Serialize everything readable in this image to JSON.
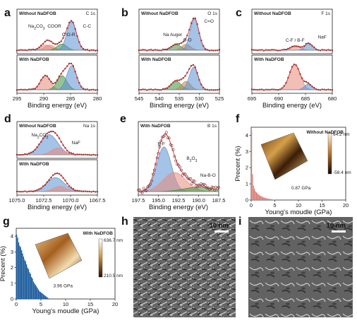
{
  "colors": {
    "frame": "#222222",
    "envelope": "#c0392b",
    "data_marker": "#7b2b3a",
    "blue_peak": "#5b8fd4",
    "red_peak": "#e58a7a",
    "green_peak": "#3f8f3f",
    "brown_peak": "#c4884d",
    "histogram_with": "#1f5e9e",
    "histogram_without": "#e0807a",
    "label_red": "#c0392b",
    "label_blue": "#1f5e9e",
    "label_green": "#2d7d2d",
    "label_brown": "#b5651d"
  },
  "labels": {
    "a": "a",
    "b": "b",
    "c": "c",
    "d": "d",
    "e": "e",
    "f": "f",
    "g": "g",
    "h": "h",
    "i": "i"
  },
  "chart_data": [
    {
      "id": "a",
      "type": "line",
      "title": "C 1s",
      "xlabel": "Binding energy (eV)",
      "ylabel": "",
      "xlim": [
        295,
        280
      ],
      "xticks": [
        "295",
        "290",
        "285",
        "280"
      ],
      "subpanels": [
        {
          "name": "Without NaDFOB",
          "peaks": [
            {
              "name": "Na2CO3",
              "center": 289.6,
              "height": 0.15,
              "width": 1.0,
              "color": "red_peak"
            },
            {
              "name": "COOR",
              "center": 288.9,
              "height": 0.15,
              "width": 0.9,
              "color": "red_peak"
            },
            {
              "name": "C-O-R",
              "center": 286.6,
              "height": 0.18,
              "width": 0.9,
              "color": "green_peak"
            },
            {
              "name": "C-C",
              "center": 284.8,
              "height": 0.82,
              "width": 0.9,
              "color": "blue_peak"
            }
          ],
          "annotations": [
            "Na2CO3",
            "COOR",
            "C-O-R",
            "C-C"
          ]
        },
        {
          "name": "With NaDFOB",
          "peaks": [
            {
              "name": "COOR",
              "center": 289.7,
              "height": 0.5,
              "width": 0.9,
              "color": "red_peak"
            },
            {
              "name": "C-O-R",
              "center": 286.6,
              "height": 0.5,
              "width": 0.9,
              "color": "green_peak"
            },
            {
              "name": "C-C",
              "center": 284.8,
              "height": 0.85,
              "width": 0.9,
              "color": "blue_peak"
            }
          ],
          "annotations": []
        }
      ]
    },
    {
      "id": "b",
      "type": "line",
      "title": "O 1s",
      "xlabel": "Binding energy (eV)",
      "ylabel": "",
      "xlim": [
        545,
        525
      ],
      "xticks": [
        "545",
        "540",
        "535",
        "530",
        "525"
      ],
      "subpanels": [
        {
          "name": "Without NaDFOB",
          "peaks": [
            {
              "name": "Na Auger",
              "center": 535.8,
              "height": 0.16,
              "width": 1.3,
              "color": "green_peak"
            },
            {
              "name": "C-O",
              "center": 533.3,
              "height": 0.17,
              "width": 1.1,
              "color": "brown_peak"
            },
            {
              "name": "C=O",
              "center": 531.2,
              "height": 0.9,
              "width": 1.1,
              "color": "blue_peak"
            }
          ],
          "annotations": [
            "Na Auger",
            "C-O",
            "C=O"
          ]
        },
        {
          "name": "With NaDFOB",
          "peaks": [
            {
              "name": "Na Auger",
              "center": 535.8,
              "height": 0.3,
              "width": 1.3,
              "color": "green_peak"
            },
            {
              "name": "C-O",
              "center": 533.3,
              "height": 0.3,
              "width": 1.1,
              "color": "brown_peak"
            },
            {
              "name": "C=O",
              "center": 531.4,
              "height": 0.8,
              "width": 1.1,
              "color": "blue_peak"
            }
          ],
          "annotations": []
        }
      ]
    },
    {
      "id": "c",
      "type": "line",
      "title": "F 1s",
      "xlabel": "Binding energy (eV)",
      "ylabel": "",
      "xlim": [
        695,
        680
      ],
      "xticks": [
        "695",
        "690",
        "685",
        "680"
      ],
      "subpanels": [
        {
          "name": "Without NaDFOB",
          "peaks": [
            {
              "name": "C-F / B-F",
              "center": 686.8,
              "height": 0.12,
              "width": 0.9,
              "color": "red_peak"
            },
            {
              "name": "NaF",
              "center": 684.4,
              "height": 0.2,
              "width": 0.7,
              "color": "blue_peak"
            }
          ],
          "annotations": [
            "C-F / B-F",
            "NaF"
          ]
        },
        {
          "name": "With NaDFOB",
          "peaks": [
            {
              "name": "C-F / B-F",
              "center": 687.0,
              "height": 0.9,
              "width": 1.0,
              "color": "red_peak"
            },
            {
              "name": "NaF",
              "center": 684.5,
              "height": 0.2,
              "width": 0.7,
              "color": "blue_peak"
            }
          ],
          "annotations": []
        }
      ]
    },
    {
      "id": "d",
      "type": "line",
      "title": "Na 1s",
      "xlabel": "Binding energy (eV)",
      "ylabel": "",
      "xlim": [
        1075.0,
        1067.5
      ],
      "xticks": [
        "1075.0",
        "1072.5",
        "1070.0",
        "1067.5"
      ],
      "subpanels": [
        {
          "name": "Without NaDFOB",
          "peaks": [
            {
              "name": "Na2CO3",
              "center": 1072.0,
              "height": 0.75,
              "width": 0.8,
              "color": "blue_peak"
            },
            {
              "name": "NaF",
              "center": 1071.2,
              "height": 0.25,
              "width": 0.6,
              "color": "red_peak"
            }
          ],
          "annotations": [
            "Na2CO3",
            "NaF"
          ]
        },
        {
          "name": "With NaDFOB",
          "peaks": [
            {
              "name": "Na2CO3",
              "center": 1071.4,
              "height": 0.55,
              "width": 0.8,
              "color": "blue_peak"
            },
            {
              "name": "NaF",
              "center": 1071.0,
              "height": 0.2,
              "width": 0.6,
              "color": "red_peak"
            }
          ],
          "annotations": []
        }
      ]
    },
    {
      "id": "e",
      "type": "line",
      "title": "B 1s",
      "xlabel": "Binding energy (eV)",
      "ylabel": "",
      "xlim": [
        197.5,
        187.5
      ],
      "xticks": [
        "197.5",
        "195.0",
        "192.5",
        "190.0",
        "187.5"
      ],
      "subpanels": [
        {
          "name": "With NaDFOB",
          "peaks": [
            {
              "name": "B-F",
              "center": 194.3,
              "height": 0.7,
              "width": 0.9,
              "color": "blue_peak"
            },
            {
              "name": "B2O3",
              "center": 193.0,
              "height": 0.3,
              "width": 1.4,
              "color": "red_peak"
            },
            {
              "name": "Na-B-O",
              "center": 190.0,
              "height": 0.07,
              "width": 1.8,
              "color": "green_peak"
            }
          ],
          "annotations": [
            "B-F",
            "B2O3",
            "Na-B-O"
          ]
        }
      ]
    },
    {
      "id": "f",
      "type": "bar",
      "title": "Without NaDFOB",
      "xlabel": "Young's moudle (GPa)",
      "ylabel": "Precent (%)",
      "xlim": [
        0,
        20
      ],
      "ylim": [
        0,
        4.5
      ],
      "xticks": [
        "0",
        "5",
        "10",
        "15",
        "20"
      ],
      "yticks": [
        "0",
        "1",
        "2",
        "3",
        "4"
      ],
      "annotation": "0.87 GPa",
      "inset_scale": {
        "max": "64.2 nm",
        "min": "-58.4 nm"
      },
      "x": [
        0.1,
        0.3,
        0.5,
        0.7,
        0.9,
        1.1,
        1.3,
        1.5,
        1.7,
        1.9,
        2.1,
        2.3,
        2.5,
        2.7,
        2.9,
        3.1,
        3.3,
        3.5,
        3.7,
        3.9,
        4.1,
        4.3,
        4.5,
        4.7,
        4.9
      ],
      "values": [
        4.3,
        1.6,
        0.9,
        0.7,
        0.55,
        0.48,
        0.42,
        0.36,
        0.31,
        0.27,
        0.24,
        0.21,
        0.18,
        0.16,
        0.14,
        0.12,
        0.1,
        0.09,
        0.08,
        0.07,
        0.06,
        0.05,
        0.04,
        0.03,
        0.02
      ]
    },
    {
      "id": "g",
      "type": "bar",
      "title": "With NaDFOB",
      "xlabel": "Young's moudle (GPa)",
      "ylabel": "Precent (%)",
      "xlim": [
        0,
        20
      ],
      "ylim": [
        0,
        4.5
      ],
      "xticks": [
        "0",
        "5",
        "10",
        "15",
        "20"
      ],
      "yticks": [
        "0",
        "1",
        "2",
        "3",
        "4"
      ],
      "annotation": "3.96 GPa",
      "inset_scale": {
        "max": "636.7 nm",
        "min": "210.5 nm"
      },
      "x": [
        0.1,
        0.3,
        0.5,
        0.7,
        0.9,
        1.1,
        1.3,
        1.5,
        1.7,
        1.9,
        2.1,
        2.3,
        2.5,
        2.7,
        2.9,
        3.1,
        3.3,
        3.5,
        3.7,
        3.9,
        4.1,
        4.3,
        4.5,
        4.7,
        4.9,
        5.1,
        5.3,
        5.5,
        5.7,
        5.9,
        6.1,
        6.3,
        6.5
      ],
      "values": [
        4.1,
        3.9,
        3.6,
        3.4,
        3.3,
        3.1,
        2.9,
        2.7,
        2.5,
        2.4,
        2.2,
        2.0,
        1.9,
        1.7,
        1.6,
        1.4,
        1.3,
        1.1,
        1.0,
        0.9,
        0.8,
        0.7,
        0.6,
        0.5,
        0.45,
        0.4,
        0.35,
        0.3,
        0.25,
        0.2,
        0.15,
        0.1,
        0.05
      ]
    }
  ],
  "sem": {
    "h": {
      "scale": "10 nm"
    },
    "i": {
      "scale": "10 nm"
    }
  }
}
